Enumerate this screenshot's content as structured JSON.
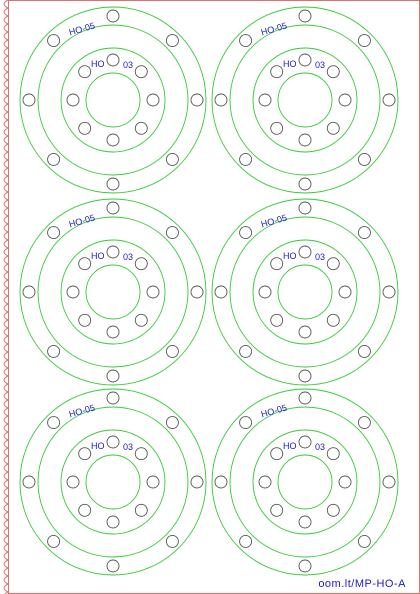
{
  "sheet": {
    "colors": {
      "ring": "#33cc33",
      "hole": "#555555",
      "label": "#1a1acc",
      "edge": "#e07070",
      "background": "#ffffff"
    },
    "outer_label": "HO-05",
    "inner_label_left": "HO",
    "inner_label_right": "03",
    "outer_hole_count": 8,
    "inner_hole_count": 8,
    "footer_text": "oom.lt/MP-HO-A"
  },
  "units": [
    {
      "id": "unit-1"
    },
    {
      "id": "unit-2"
    },
    {
      "id": "unit-3"
    },
    {
      "id": "unit-4"
    },
    {
      "id": "unit-5"
    },
    {
      "id": "unit-6"
    }
  ]
}
